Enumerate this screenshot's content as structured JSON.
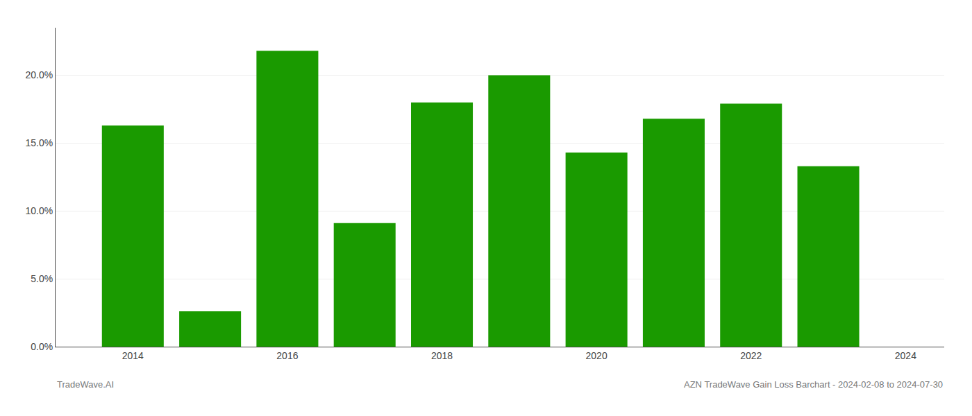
{
  "chart_data": {
    "type": "bar",
    "x": [
      2014,
      2015,
      2016,
      2017,
      2018,
      2019,
      2020,
      2021,
      2022,
      2023
    ],
    "values": [
      0.163,
      0.026,
      0.218,
      0.091,
      0.18,
      0.2,
      0.143,
      0.168,
      0.179,
      0.133
    ],
    "color": "#1a9a00",
    "xlim": [
      2013.0,
      2024.5
    ],
    "xticks": [
      2014,
      2016,
      2018,
      2020,
      2022,
      2024
    ],
    "ylim": [
      0,
      0.235
    ],
    "yticks": [
      {
        "value": 0.0,
        "label": "0.0%"
      },
      {
        "value": 0.05,
        "label": "5.0%"
      },
      {
        "value": 0.1,
        "label": "10.0%"
      },
      {
        "value": 0.15,
        "label": "15.0%"
      },
      {
        "value": 0.2,
        "label": "20.0%"
      }
    ],
    "grid": true,
    "annotations": [
      "TradeWave.AI",
      "AZN TradeWave Gain Loss Barchart - 2024-02-08 to 2024-07-30"
    ]
  }
}
